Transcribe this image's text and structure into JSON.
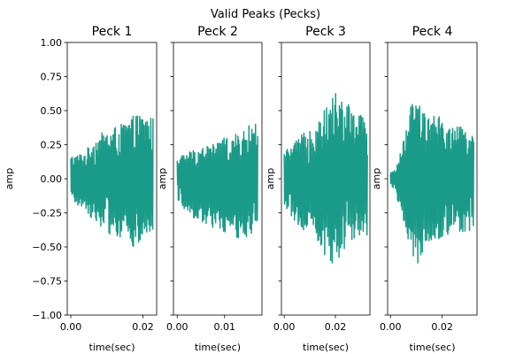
{
  "chart_data": {
    "type": "line",
    "title": "Valid Peaks (Pecks)",
    "shared_ylim": [
      -1.0,
      1.0
    ],
    "yticks": [
      -1.0,
      -0.75,
      -0.5,
      -0.25,
      0.0,
      0.25,
      0.5,
      0.75,
      1.0
    ],
    "ytick_labels": [
      "−1.00",
      "−0.75",
      "−0.50",
      "−0.25",
      "0.00",
      "0.25",
      "0.50",
      "0.75",
      "1.00"
    ],
    "line_color": "#1a9a88",
    "subplots": [
      {
        "title": "Peck 1",
        "xlabel": "time(sec)",
        "ylabel": "amp",
        "xlim": [
          -0.001,
          0.0238
        ],
        "xticks": [
          0.0,
          0.02
        ],
        "xtick_labels": [
          "0.00",
          "0.02"
        ],
        "duration": 0.0228,
        "envelope": [
          [
            0.0,
            0.17,
            -0.17
          ],
          [
            0.002,
            0.18,
            -0.2
          ],
          [
            0.004,
            0.2,
            -0.22
          ],
          [
            0.006,
            0.28,
            -0.3
          ],
          [
            0.008,
            0.33,
            -0.34
          ],
          [
            0.01,
            0.35,
            -0.4
          ],
          [
            0.012,
            0.38,
            -0.42
          ],
          [
            0.014,
            0.4,
            -0.44
          ],
          [
            0.016,
            0.44,
            -0.47
          ],
          [
            0.018,
            0.47,
            -0.53
          ],
          [
            0.02,
            0.48,
            -0.45
          ],
          [
            0.0228,
            0.45,
            -0.4
          ]
        ]
      },
      {
        "title": "Peck 2",
        "xlabel": "time(sec)",
        "ylabel": "amp",
        "xlim": [
          -0.0008,
          0.0179
        ],
        "xticks": [
          0.0,
          0.01
        ],
        "xtick_labels": [
          "0.00",
          "0.01"
        ],
        "duration": 0.017,
        "envelope": [
          [
            0.0,
            0.15,
            -0.15
          ],
          [
            0.002,
            0.2,
            -0.25
          ],
          [
            0.004,
            0.22,
            -0.3
          ],
          [
            0.006,
            0.25,
            -0.33
          ],
          [
            0.008,
            0.26,
            -0.38
          ],
          [
            0.01,
            0.3,
            -0.4
          ],
          [
            0.012,
            0.32,
            -0.43
          ],
          [
            0.014,
            0.35,
            -0.45
          ],
          [
            0.016,
            0.42,
            -0.4
          ],
          [
            0.017,
            0.4,
            -0.38
          ]
        ]
      },
      {
        "title": "Peck 3",
        "xlabel": "time(sec)",
        "ylabel": "amp",
        "xlim": [
          -0.0011,
          0.0335
        ],
        "xticks": [
          0.0,
          0.02
        ],
        "xtick_labels": [
          "0.00",
          "0.02"
        ],
        "duration": 0.0325,
        "envelope": [
          [
            0.0,
            0.2,
            -0.2
          ],
          [
            0.003,
            0.25,
            -0.28
          ],
          [
            0.006,
            0.3,
            -0.35
          ],
          [
            0.009,
            0.38,
            -0.4
          ],
          [
            0.012,
            0.42,
            -0.45
          ],
          [
            0.015,
            0.5,
            -0.55
          ],
          [
            0.018,
            0.55,
            -0.6
          ],
          [
            0.02,
            0.68,
            -0.65
          ],
          [
            0.022,
            0.6,
            -0.55
          ],
          [
            0.025,
            0.55,
            -0.5
          ],
          [
            0.028,
            0.5,
            -0.45
          ],
          [
            0.0325,
            0.45,
            -0.42
          ]
        ]
      },
      {
        "title": "Peck 4",
        "xlabel": "time(sec)",
        "ylabel": "amp",
        "xlim": [
          -0.0011,
          0.0335
        ],
        "xticks": [
          0.0,
          0.02
        ],
        "xtick_labels": [
          "0.00",
          "0.02"
        ],
        "duration": 0.0322,
        "envelope": [
          [
            0.0,
            0.04,
            -0.04
          ],
          [
            0.002,
            0.08,
            -0.1
          ],
          [
            0.004,
            0.2,
            -0.25
          ],
          [
            0.006,
            0.35,
            -0.4
          ],
          [
            0.008,
            0.55,
            -0.55
          ],
          [
            0.01,
            0.6,
            -0.68
          ],
          [
            0.012,
            0.5,
            -0.55
          ],
          [
            0.015,
            0.45,
            -0.5
          ],
          [
            0.018,
            0.48,
            -0.45
          ],
          [
            0.022,
            0.4,
            -0.42
          ],
          [
            0.026,
            0.38,
            -0.4
          ],
          [
            0.0322,
            0.38,
            -0.38
          ]
        ]
      }
    ]
  }
}
